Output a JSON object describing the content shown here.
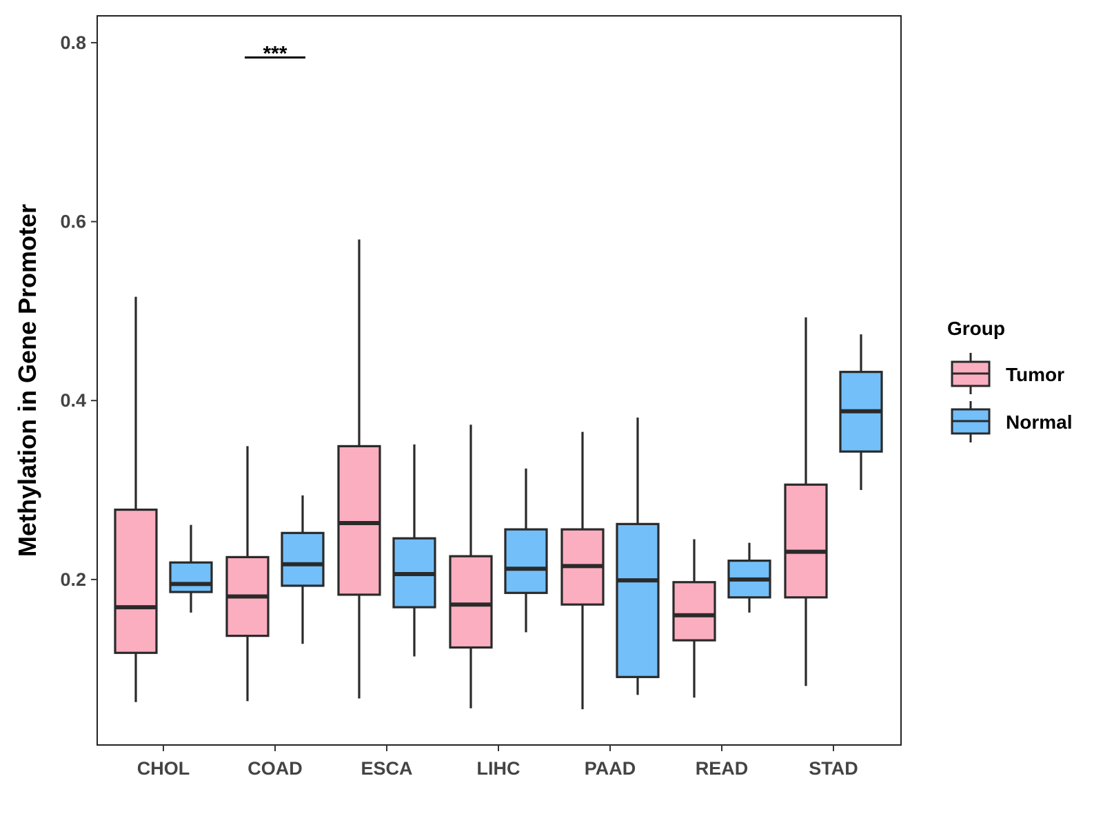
{
  "chart_data": {
    "type": "boxplot",
    "title": "",
    "xlabel": "",
    "ylabel": "Methylation in Gene Promoter",
    "ylim": [
      0.015,
      0.83
    ],
    "yticks": [
      0.2,
      0.4,
      0.6,
      0.8
    ],
    "ytick_labels": [
      "0.2",
      "0.4",
      "0.6",
      "0.8"
    ],
    "categories": [
      "CHOL",
      "COAD",
      "ESCA",
      "LIHC",
      "PAAD",
      "READ",
      "STAD"
    ],
    "grid": false,
    "legend": {
      "title": "Group",
      "position": "right"
    },
    "colors": {
      "Tumor": "#fbaec0",
      "Normal": "#73bff9",
      "outline": "#2a2a2a"
    },
    "series": [
      {
        "name": "Tumor",
        "boxes": [
          {
            "category": "CHOL",
            "min": 0.063,
            "q1": 0.118,
            "median": 0.169,
            "q3": 0.278,
            "max": 0.516
          },
          {
            "category": "COAD",
            "min": 0.064,
            "q1": 0.137,
            "median": 0.181,
            "q3": 0.225,
            "max": 0.349
          },
          {
            "category": "ESCA",
            "min": 0.067,
            "q1": 0.183,
            "median": 0.263,
            "q3": 0.349,
            "max": 0.58
          },
          {
            "category": "LIHC",
            "min": 0.056,
            "q1": 0.124,
            "median": 0.172,
            "q3": 0.226,
            "max": 0.373
          },
          {
            "category": "PAAD",
            "min": 0.055,
            "q1": 0.172,
            "median": 0.215,
            "q3": 0.256,
            "max": 0.365
          },
          {
            "category": "READ",
            "min": 0.068,
            "q1": 0.132,
            "median": 0.16,
            "q3": 0.197,
            "max": 0.245
          },
          {
            "category": "STAD",
            "min": 0.081,
            "q1": 0.18,
            "median": 0.231,
            "q3": 0.306,
            "max": 0.493
          }
        ]
      },
      {
        "name": "Normal",
        "boxes": [
          {
            "category": "CHOL",
            "min": 0.163,
            "q1": 0.186,
            "median": 0.195,
            "q3": 0.219,
            "max": 0.261
          },
          {
            "category": "COAD",
            "min": 0.128,
            "q1": 0.193,
            "median": 0.217,
            "q3": 0.252,
            "max": 0.294
          },
          {
            "category": "ESCA",
            "min": 0.114,
            "q1": 0.169,
            "median": 0.206,
            "q3": 0.246,
            "max": 0.351
          },
          {
            "category": "LIHC",
            "min": 0.141,
            "q1": 0.185,
            "median": 0.212,
            "q3": 0.256,
            "max": 0.324
          },
          {
            "category": "PAAD",
            "min": 0.071,
            "q1": 0.091,
            "median": 0.199,
            "q3": 0.262,
            "max": 0.381
          },
          {
            "category": "READ",
            "min": 0.163,
            "q1": 0.18,
            "median": 0.2,
            "q3": 0.221,
            "max": 0.241
          },
          {
            "category": "STAD",
            "min": 0.3,
            "q1": 0.343,
            "median": 0.388,
            "q3": 0.432,
            "max": 0.474
          }
        ]
      }
    ],
    "annotations": [
      {
        "category": "COAD",
        "text": "***",
        "y": 0.785
      }
    ]
  }
}
